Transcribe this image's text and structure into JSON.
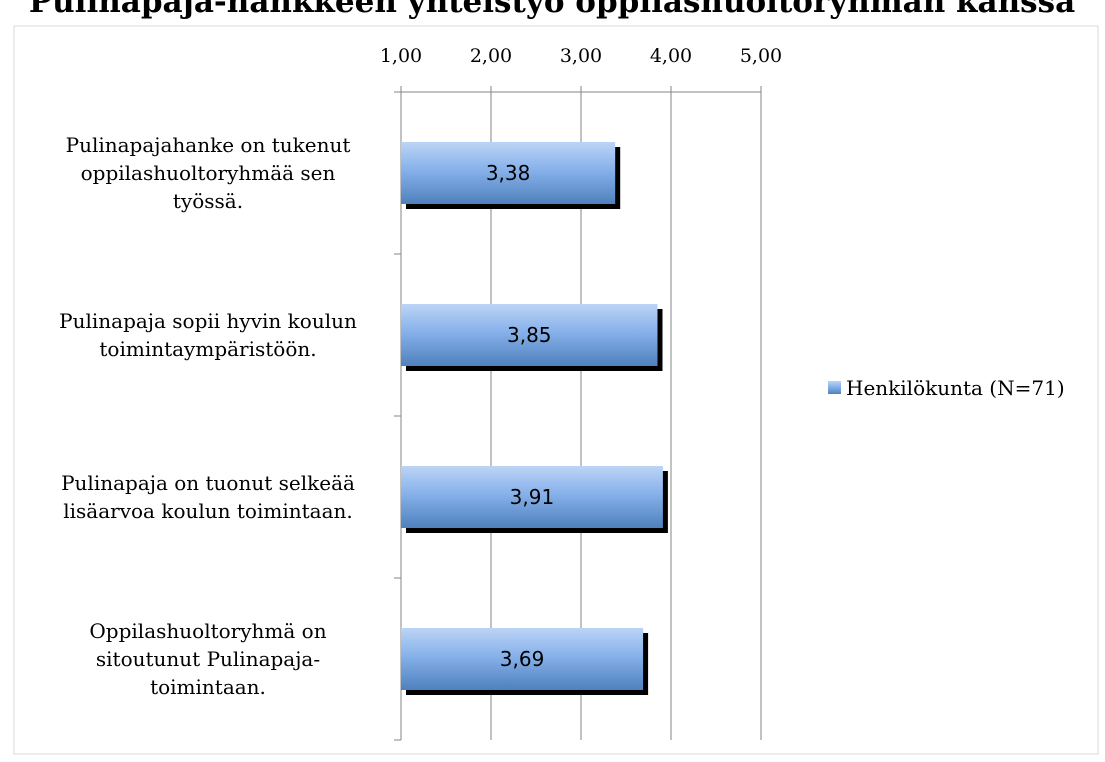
{
  "chart_data": {
    "type": "bar",
    "orientation": "horizontal",
    "title": "Pulinapaja-hankkeen yhteistyö oppilashuoltoryhmän kanssa",
    "categories": [
      "Pulinapajahanke on tukenut oppilashuoltoryhmää sen työssä.",
      "Pulinapaja sopii hyvin koulun toimintaympäristöön.",
      "Pulinapaja on tuonut selkeää lisäarvoa koulun toimintaan.",
      "Oppilashuoltoryhmä on sitoutunut Pulinapaja-toimintaan."
    ],
    "category_lines": [
      [
        "Pulinapajahanke on tukenut",
        "oppilashuoltoryhmää sen",
        "työssä."
      ],
      [
        "Pulinapaja sopii hyvin koulun",
        "toimintaympäristöön."
      ],
      [
        "Pulinapaja on tuonut selkeää",
        "lisäarvoa koulun toimintaan."
      ],
      [
        "Oppilashuoltoryhmä on",
        "sitoutunut Pulinapaja-",
        "toimintaan."
      ]
    ],
    "series": [
      {
        "name": "Henkilökunta (N=71)",
        "values": [
          3.38,
          3.85,
          3.91,
          3.69
        ]
      }
    ],
    "value_labels": [
      "3,38",
      "3,85",
      "3,91",
      "3,69"
    ],
    "xlim": [
      1,
      5
    ],
    "x_ticks": [
      1,
      2,
      3,
      4,
      5
    ],
    "x_tick_labels": [
      "1,00",
      "2,00",
      "3,00",
      "4,00",
      "5,00"
    ],
    "x_axis_position": "top",
    "grid": true,
    "legend_position": "right",
    "colors": {
      "bar_light": "#bcd4f6",
      "bar_mid": "#87b1ea",
      "bar_dark": "#4f81bd",
      "shadow": "#000000",
      "grid": "#868686"
    }
  }
}
